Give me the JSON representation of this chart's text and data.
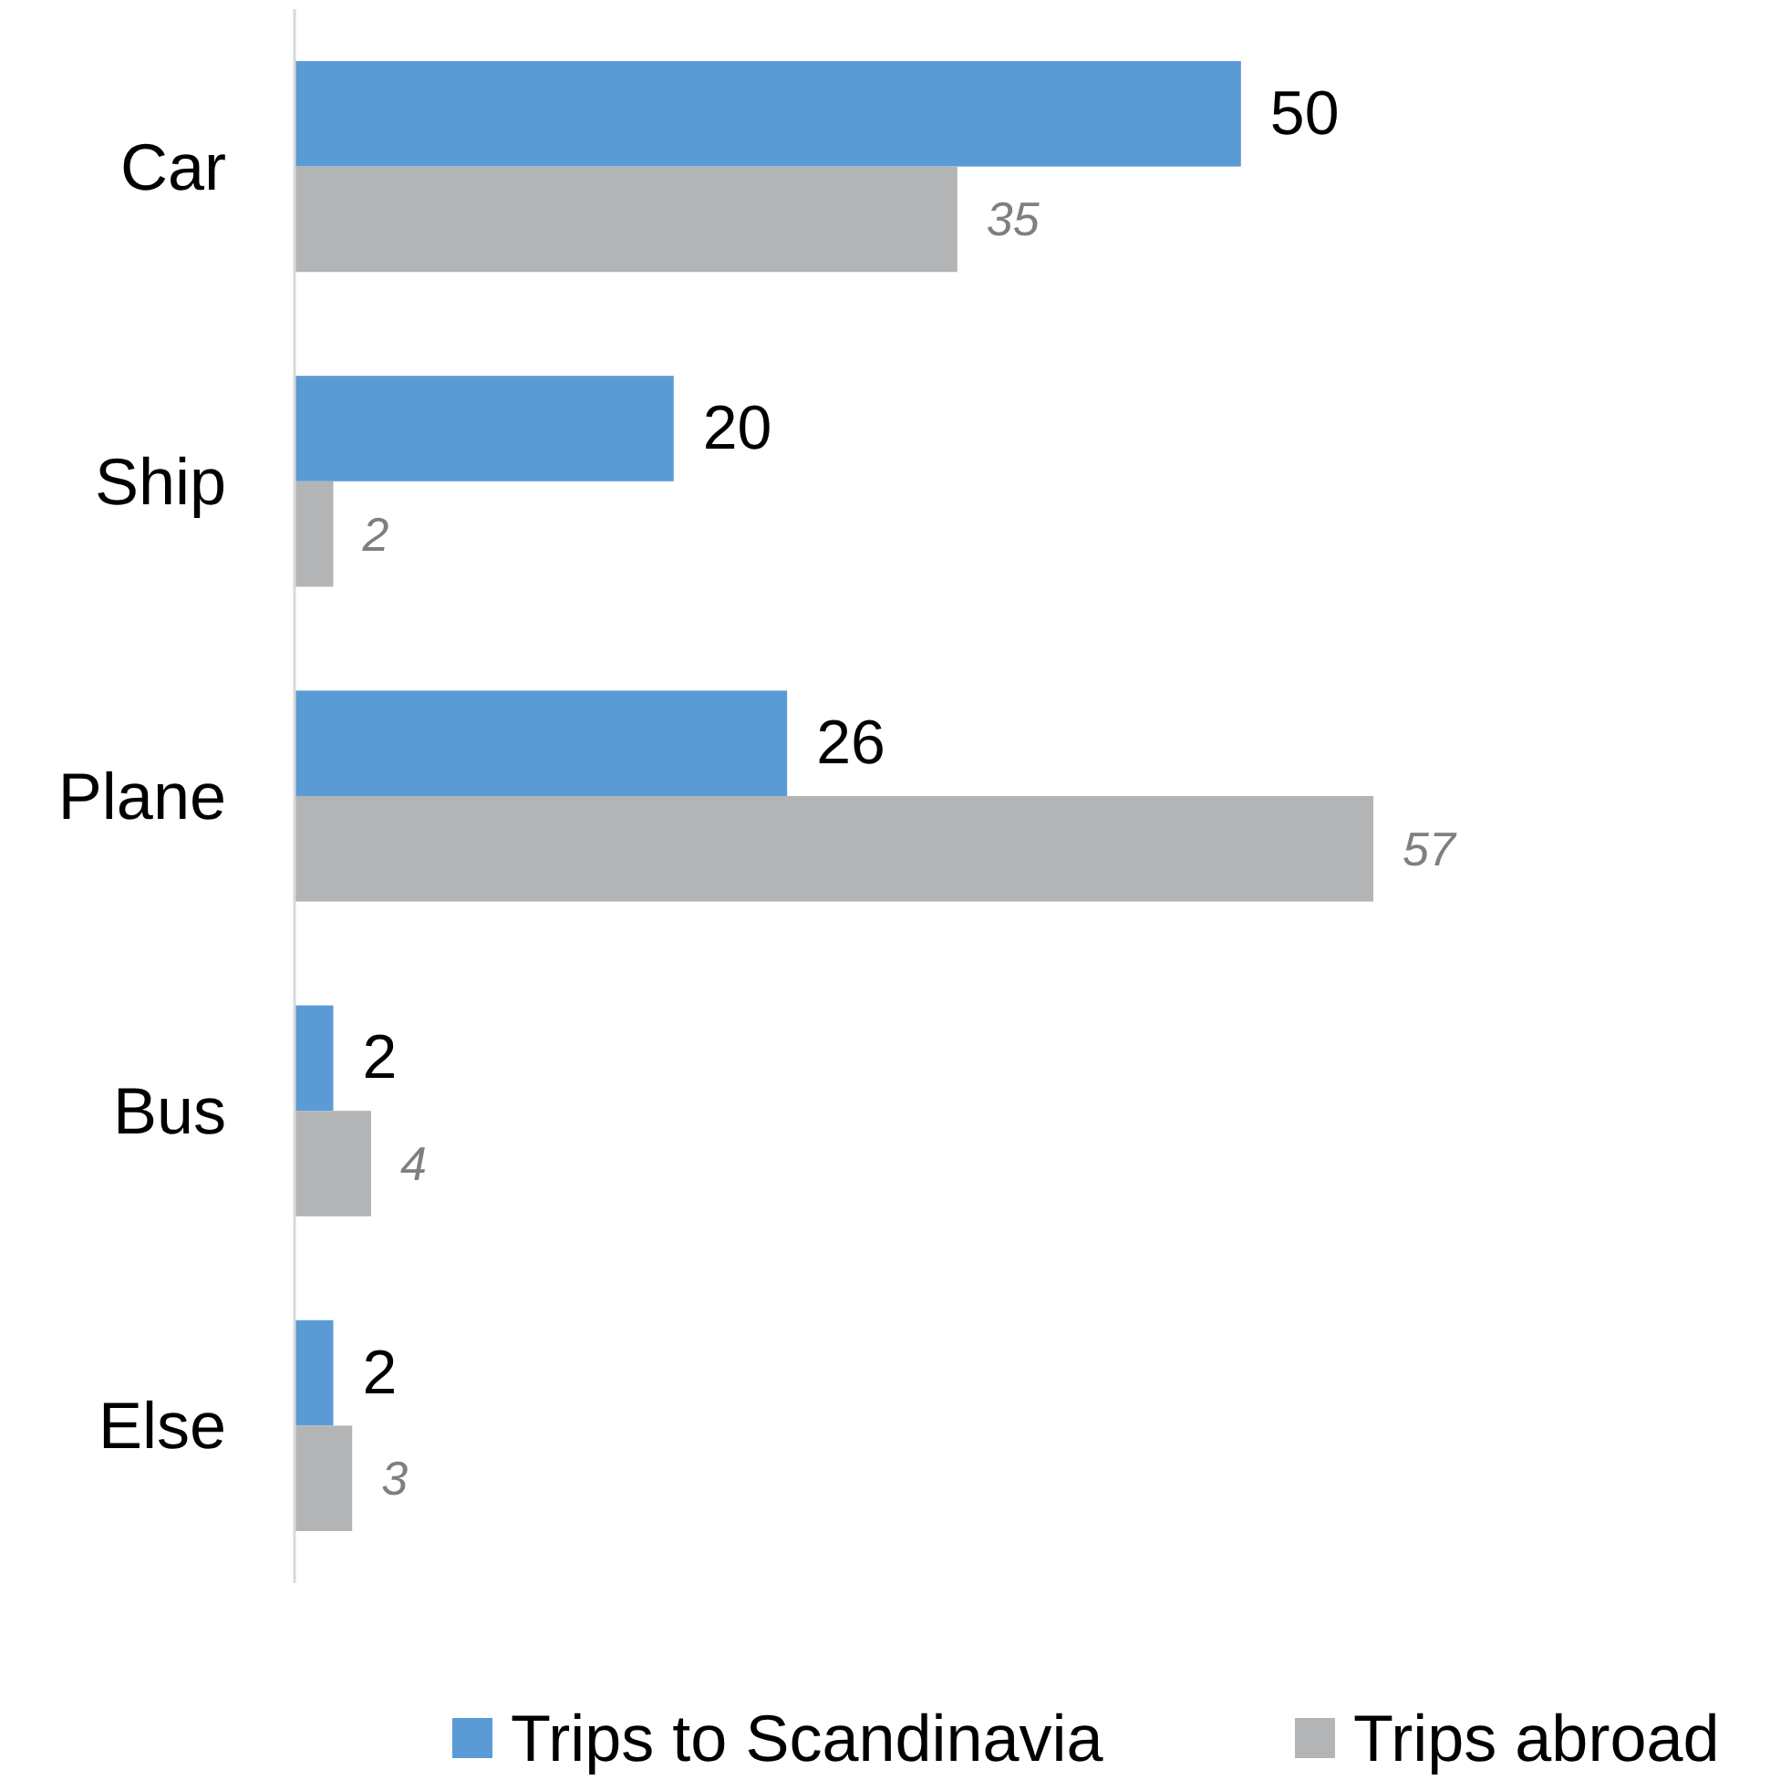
{
  "chart_data": {
    "type": "bar",
    "orientation": "horizontal",
    "categories": [
      "Car",
      "Ship",
      "Plane",
      "Bus",
      "Else"
    ],
    "series": [
      {
        "name": "Trips to Scandinavia",
        "color": "#5b9bd5",
        "values": [
          50,
          20,
          26,
          2,
          2
        ]
      },
      {
        "name": "Trips abroad",
        "color": "#b3b4b6",
        "values": [
          35,
          2,
          57,
          4,
          3
        ]
      }
    ],
    "data_labels": true,
    "legend": "bottom"
  }
}
